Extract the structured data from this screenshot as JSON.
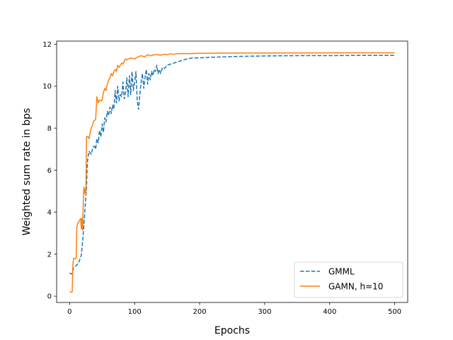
{
  "chart_data": {
    "type": "line",
    "xlabel": "Epochs",
    "ylabel": "Weighted sum rate in bps",
    "xlim": [
      -20,
      520
    ],
    "ylim": [
      -0.3,
      12.15
    ],
    "xticks": [
      0,
      100,
      200,
      300,
      400,
      500
    ],
    "yticks": [
      0,
      2,
      4,
      6,
      8,
      10,
      12
    ],
    "grid": false,
    "legend_position": "lower-right",
    "series": [
      {
        "name": "GMML",
        "style": "dashed",
        "color": "#1f77b4",
        "points": [
          [
            0,
            1.1
          ],
          [
            4,
            1.05
          ],
          [
            6,
            1.35
          ],
          [
            10,
            1.45
          ],
          [
            14,
            1.6
          ],
          [
            18,
            1.95
          ],
          [
            20,
            2.6
          ],
          [
            22,
            3.4
          ],
          [
            24,
            4.3
          ],
          [
            26,
            5.2
          ],
          [
            27,
            6.2
          ],
          [
            28,
            6.6
          ],
          [
            30,
            6.9
          ],
          [
            33,
            6.75
          ],
          [
            36,
            7.1
          ],
          [
            38,
            7.15
          ],
          [
            40,
            7.0
          ],
          [
            42,
            7.5
          ],
          [
            44,
            7.3
          ],
          [
            46,
            7.9
          ],
          [
            48,
            7.6
          ],
          [
            50,
            8.2
          ],
          [
            52,
            7.8
          ],
          [
            54,
            8.5
          ],
          [
            56,
            8.3
          ],
          [
            58,
            8.8
          ],
          [
            60,
            8.6
          ],
          [
            62,
            9.0
          ],
          [
            64,
            8.7
          ],
          [
            66,
            9.1
          ],
          [
            68,
            8.9
          ],
          [
            70,
            9.8
          ],
          [
            72,
            9.2
          ],
          [
            74,
            10.0
          ],
          [
            76,
            9.3
          ],
          [
            78,
            9.6
          ],
          [
            80,
            9.5
          ],
          [
            82,
            10.2
          ],
          [
            84,
            9.4
          ],
          [
            86,
            9.7
          ],
          [
            88,
            10.4
          ],
          [
            90,
            9.5
          ],
          [
            92,
            10.5
          ],
          [
            94,
            9.6
          ],
          [
            96,
            10.7
          ],
          [
            98,
            9.8
          ],
          [
            100,
            10.2
          ],
          [
            102,
            10.7
          ],
          [
            104,
            9.3
          ],
          [
            106,
            8.9
          ],
          [
            108,
            9.6
          ],
          [
            110,
            10.2
          ],
          [
            112,
            10.6
          ],
          [
            114,
            9.9
          ],
          [
            116,
            10.4
          ],
          [
            118,
            10.8
          ],
          [
            120,
            10.1
          ],
          [
            122,
            10.6
          ],
          [
            124,
            10.3
          ],
          [
            126,
            10.7
          ],
          [
            128,
            10.5
          ],
          [
            130,
            10.8
          ],
          [
            132,
            10.7
          ],
          [
            134,
            11.0
          ],
          [
            136,
            10.6
          ],
          [
            138,
            10.8
          ],
          [
            140,
            10.6
          ],
          [
            143,
            10.9
          ],
          [
            146,
            10.85
          ],
          [
            150,
            11.0
          ],
          [
            155,
            11.05
          ],
          [
            160,
            11.1
          ],
          [
            170,
            11.2
          ],
          [
            180,
            11.3
          ],
          [
            190,
            11.35
          ],
          [
            200,
            11.35
          ],
          [
            220,
            11.38
          ],
          [
            240,
            11.4
          ],
          [
            260,
            11.42
          ],
          [
            280,
            11.43
          ],
          [
            300,
            11.44
          ],
          [
            330,
            11.45
          ],
          [
            360,
            11.46
          ],
          [
            400,
            11.46
          ],
          [
            450,
            11.47
          ],
          [
            500,
            11.47
          ]
        ]
      },
      {
        "name": "GAMN, h=10",
        "style": "solid",
        "color": "#ff7f0e",
        "points": [
          [
            0,
            0.2
          ],
          [
            4,
            0.2
          ],
          [
            5,
            1.5
          ],
          [
            6,
            1.8
          ],
          [
            10,
            1.8
          ],
          [
            11,
            3.3
          ],
          [
            13,
            3.5
          ],
          [
            15,
            3.6
          ],
          [
            17,
            3.7
          ],
          [
            18,
            3.2
          ],
          [
            19,
            3.7
          ],
          [
            20,
            3.15
          ],
          [
            21,
            4.5
          ],
          [
            22,
            5.2
          ],
          [
            23,
            4.9
          ],
          [
            24,
            5.1
          ],
          [
            25,
            4.85
          ],
          [
            26,
            7.6
          ],
          [
            28,
            7.6
          ],
          [
            30,
            7.5
          ],
          [
            31,
            7.7
          ],
          [
            33,
            8.0
          ],
          [
            35,
            8.1
          ],
          [
            37,
            8.35
          ],
          [
            40,
            8.4
          ],
          [
            42,
            9.5
          ],
          [
            44,
            9.2
          ],
          [
            46,
            9.35
          ],
          [
            48,
            9.3
          ],
          [
            50,
            9.35
          ],
          [
            52,
            9.7
          ],
          [
            54,
            9.9
          ],
          [
            56,
            9.8
          ],
          [
            58,
            10.1
          ],
          [
            60,
            10.3
          ],
          [
            62,
            10.4
          ],
          [
            64,
            10.6
          ],
          [
            66,
            10.5
          ],
          [
            68,
            10.7
          ],
          [
            70,
            10.8
          ],
          [
            72,
            10.7
          ],
          [
            74,
            11.0
          ],
          [
            76,
            10.9
          ],
          [
            78,
            11.0
          ],
          [
            80,
            11.1
          ],
          [
            82,
            11.05
          ],
          [
            84,
            11.2
          ],
          [
            86,
            11.3
          ],
          [
            88,
            11.25
          ],
          [
            90,
            11.3
          ],
          [
            95,
            11.35
          ],
          [
            100,
            11.3
          ],
          [
            105,
            11.4
          ],
          [
            110,
            11.45
          ],
          [
            115,
            11.4
          ],
          [
            120,
            11.5
          ],
          [
            125,
            11.45
          ],
          [
            130,
            11.5
          ],
          [
            135,
            11.5
          ],
          [
            140,
            11.48
          ],
          [
            145,
            11.52
          ],
          [
            150,
            11.5
          ],
          [
            155,
            11.55
          ],
          [
            160,
            11.52
          ],
          [
            165,
            11.55
          ],
          [
            170,
            11.55
          ],
          [
            175,
            11.56
          ],
          [
            180,
            11.55
          ],
          [
            190,
            11.56
          ],
          [
            200,
            11.57
          ],
          [
            250,
            11.58
          ],
          [
            300,
            11.58
          ],
          [
            400,
            11.59
          ],
          [
            500,
            11.59
          ]
        ]
      }
    ]
  }
}
